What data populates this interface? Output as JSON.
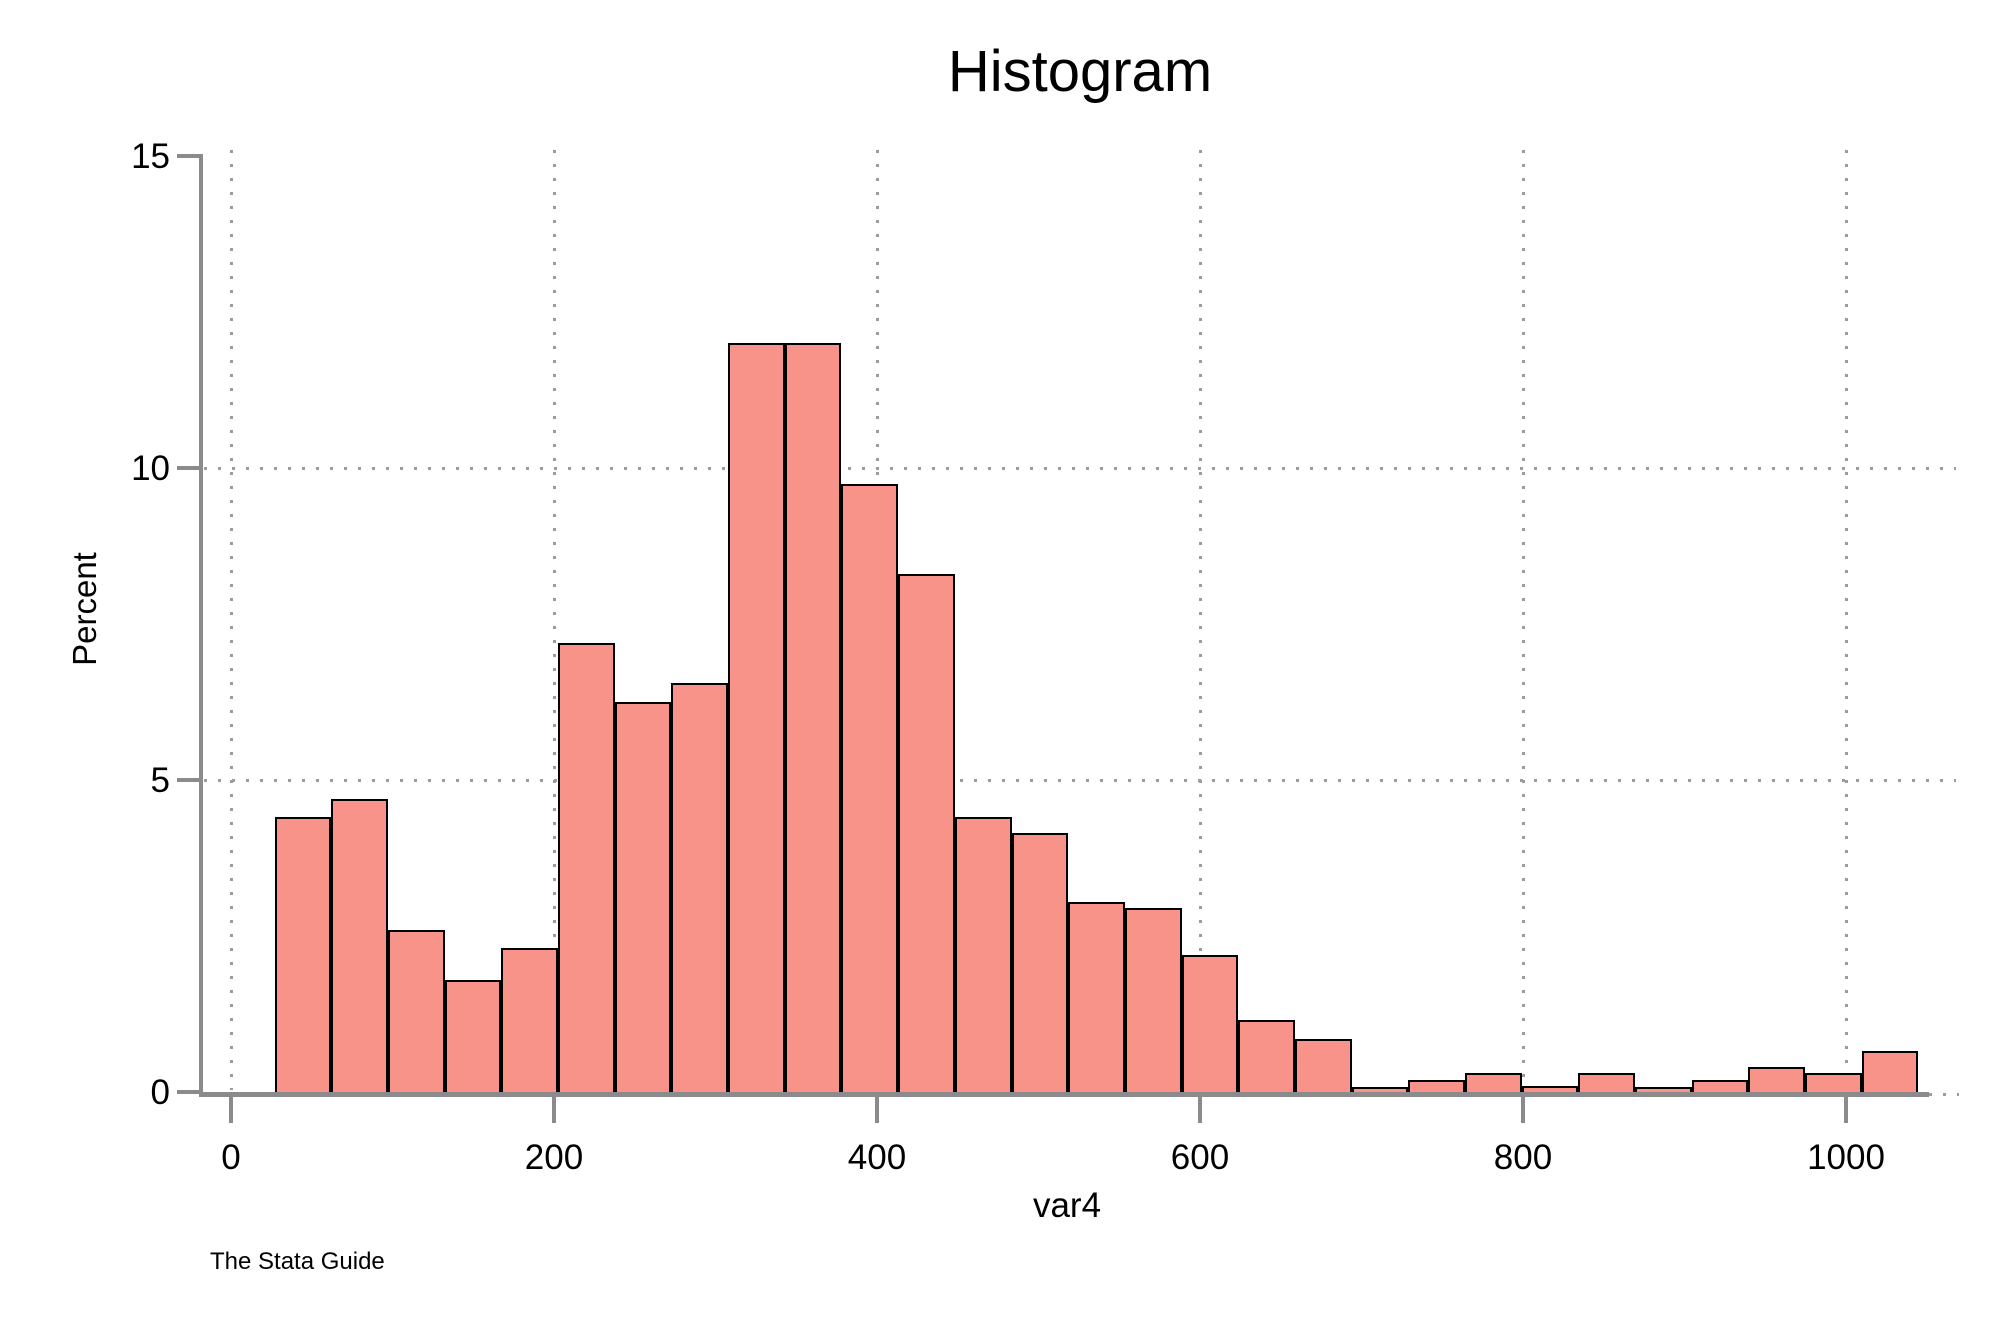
{
  "page": {
    "background": "#ffffff"
  },
  "chart_data": {
    "type": "bar",
    "subtype": "histogram",
    "title": "Histogram",
    "xlabel": "var4",
    "ylabel": "Percent",
    "source_note": "The Stata Guide",
    "ylim": [
      0,
      15
    ],
    "xlim": [
      0,
      1069
    ],
    "y_ticks": [
      0,
      5,
      10,
      15
    ],
    "x_ticks": [
      0,
      200,
      400,
      600,
      800,
      1000
    ],
    "grid": {
      "style": "dotted",
      "horizontal_at": [
        5,
        10
      ],
      "vertical_at": [
        0,
        200,
        400,
        600,
        800,
        1000
      ]
    },
    "bins": {
      "bin_start": 27,
      "bin_width": 35.1,
      "percents": [
        4.4,
        4.7,
        2.6,
        1.8,
        2.3,
        7.2,
        6.25,
        6.55,
        12.0,
        12.0,
        9.75,
        8.3,
        4.4,
        4.15,
        3.05,
        2.95,
        2.2,
        1.15,
        0.85,
        0.08,
        0.2,
        0.3,
        0.1,
        0.3,
        0.08,
        0.2,
        0.4,
        0.3,
        0.65
      ]
    },
    "colors": {
      "bar_fill": "#f8938a",
      "bar_border": "#000000",
      "axis": "#8b8b8b",
      "grid": "#9c9c9c",
      "text": "#000000"
    }
  }
}
